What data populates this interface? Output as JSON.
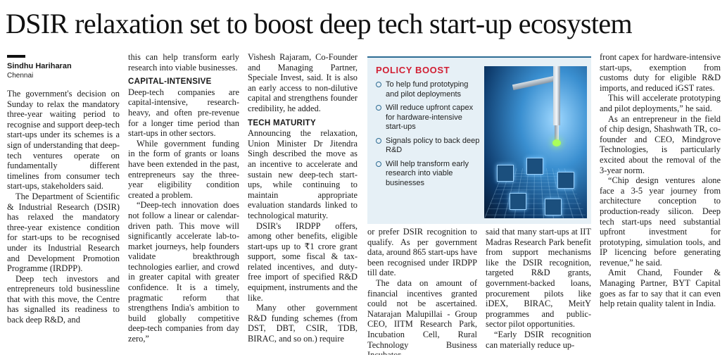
{
  "headline": "DSIR relaxation set to boost deep tech start-up ecosystem",
  "byline": {
    "name": "Sindhu Hariharan",
    "place": "Chennai"
  },
  "col1": [
    "The government's decision on Sunday to relax the mandatory three-year waiting period to recognise and support deep-tech start-ups under its schemes is a sign of understanding that deep-tech ventures operate on fundamentally different timelines from consumer tech start-ups, stakeholders said.",
    "The Department of Scientific & Industrial Research (DSIR) has relaxed the mandatory three-year existence condition for start-ups to be recognised under its Industrial Research and Development Promotion Programme (IRDPP).",
    "Deep tech investors and entrepreneurs told businessline that with this move, the Centre has signalled its readiness to back deep R&D, and"
  ],
  "col2": {
    "p0": "this can help transform early research into viable businesses.",
    "sub1": "CAPITAL-INTENSIVE",
    "paras": [
      "Deep-tech companies are capital-intensive, research-heavy, and often pre-revenue for a longer time period than start-ups in other sectors.",
      "While government funding in the form of grants or loans have been extended in the past, entrepreneurs say the three-year eligibility condition created a problem.",
      "“Deep-tech innovation does not follow a linear or calendar-driven path. This move will significantly accelerate lab-to-market journeys, help founders validate breakthrough technologies earlier, and crowd in greater capital with greater confidence. It is a timely, pragmatic reform that strengthens India's ambition to build globally competitive deep-tech companies from day zero,”"
    ]
  },
  "col3": {
    "p0": "Vishesh Rajaram, Co-Founder and Managing Partner, Speciale Invest, said. It is also an early access to non-dilutive capital and strengthens founder credibility, he added.",
    "sub1": "TECH MATURITY",
    "paras": [
      "Announcing the relaxation, Union Minister Dr Jitendra Singh described the move as an incentive to accelerate and sustain new deep-tech start-ups, while continuing to maintain appropriate evaluation standards linked to technological maturity.",
      "DSIR's IRDPP offers, among other benefits, eligible start-ups up to ₹1 crore grant support, some fiscal & tax-related incentives, and duty-free import of specified R&D equipment, instruments and the like.",
      "Many other government R&D funding schemes (from DST, DBT, CSIR, TDB, BIRAC, and so on.) require"
    ]
  },
  "policy_box": {
    "title": "POLICY BOOST",
    "items": [
      "To help fund prototyping and pilot deployments",
      "Will reduce upfront capex for hardware-intensive start-ups",
      "Signals policy to back deep R&D",
      "Will help transform early research into viable businesses"
    ],
    "colors": {
      "title": "#d11f33",
      "box_bg": "#e6f0f6",
      "accent": "#2d6b93"
    }
  },
  "col4": [
    "or prefer DSIR recognition to qualify. As per government data, around 865 start-ups have been recognised under IRDPP till date.",
    "The data on amount of financial incentives granted could not be ascertained. Natarajan Malupillai - Group CEO, IITM Research Park, Incubation Cell, Rural Technology Business Incubator,"
  ],
  "col5": [
    "said that many start-ups at IIT Madras Research Park benefit from support mechanisms like the DSIR recognition, targeted R&D grants, government-backed loans, procurement pilots like iDEX, BIRAC, MeitY programmes and public-sector pilot opportunities.",
    "“Early DSIR recognition can materially reduce up-"
  ],
  "col6": [
    "front capex for hardware-intensive start-ups, exemption from customs duty for eligible R&D imports, and reduced iGST rates.",
    "This will accelerate prototyping and pilot deployments,” he said.",
    "As an entrepreneur in the field of chip design, Shashwath TR, co-founder and CEO, Mindgrove Technologies, is particularly excited about the removal of the 3-year norm.",
    "“Chip design ventures alone face a 3-5 year journey from architecture conception to production-ready silicon. Deep tech start-ups need substantial upfront investment for prototyping, simulation tools, and IP licencing before generating revenue,” he said.",
    "Amit Chand, Founder & Managing Partner, BYT Capital goes as far to say that it can even help retain quality talent in India."
  ]
}
